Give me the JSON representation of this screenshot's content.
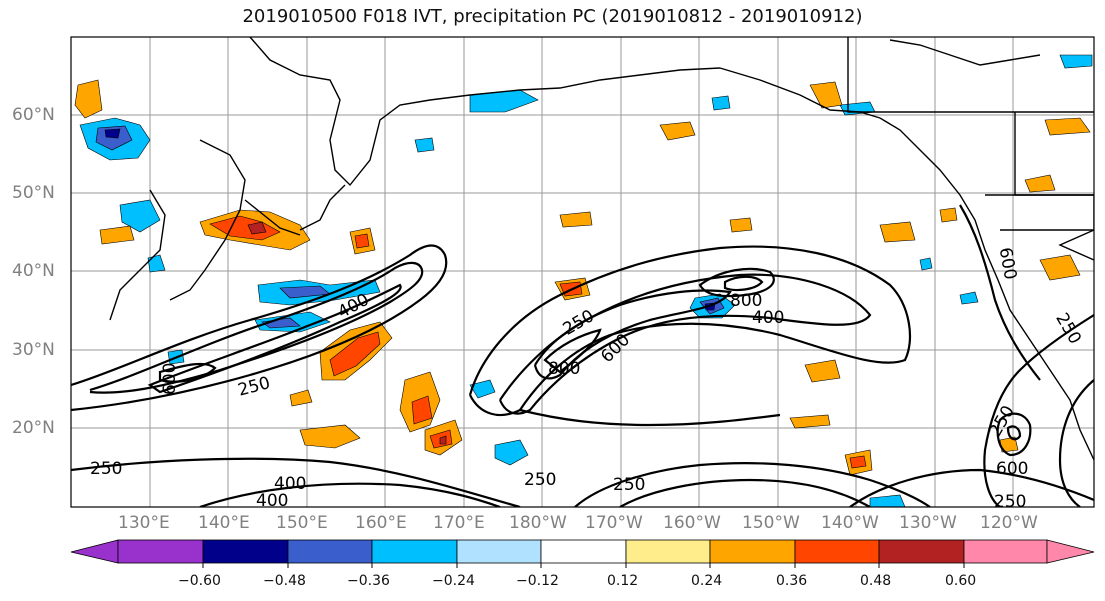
{
  "title": "2019010500 F018 IVT, precipitation PC (2019010812 - 2019010912)",
  "lat_labels": [
    "60°N",
    "50°N",
    "40°N",
    "30°N",
    "20°N"
  ],
  "lon_labels": [
    "130°E",
    "140°E",
    "150°E",
    "160°E",
    "170°E",
    "180°W",
    "170°W",
    "160°W",
    "150°W",
    "140°W",
    "130°W",
    "120°W"
  ],
  "contour_labels": [
    "400",
    "600",
    "250",
    "250",
    "600",
    "800",
    "800",
    "400",
    "250",
    "600",
    "250",
    "250",
    "400",
    "400",
    "250",
    "250",
    "600",
    "250",
    "250",
    "400"
  ],
  "colorbar": {
    "ticks": [
      "−0.60",
      "−0.48",
      "−0.36",
      "−0.24",
      "−0.12",
      "0.12",
      "0.24",
      "0.36",
      "0.48",
      "0.60"
    ],
    "colors": [
      "#9932cc",
      "#00008b",
      "#3a5fcd",
      "#00bfff",
      "#b0e2ff",
      "#ffffff",
      "#ffec8b",
      "#ffa500",
      "#ff4500",
      "#b22222",
      "#ff88aa",
      "#ff88aa"
    ]
  }
}
